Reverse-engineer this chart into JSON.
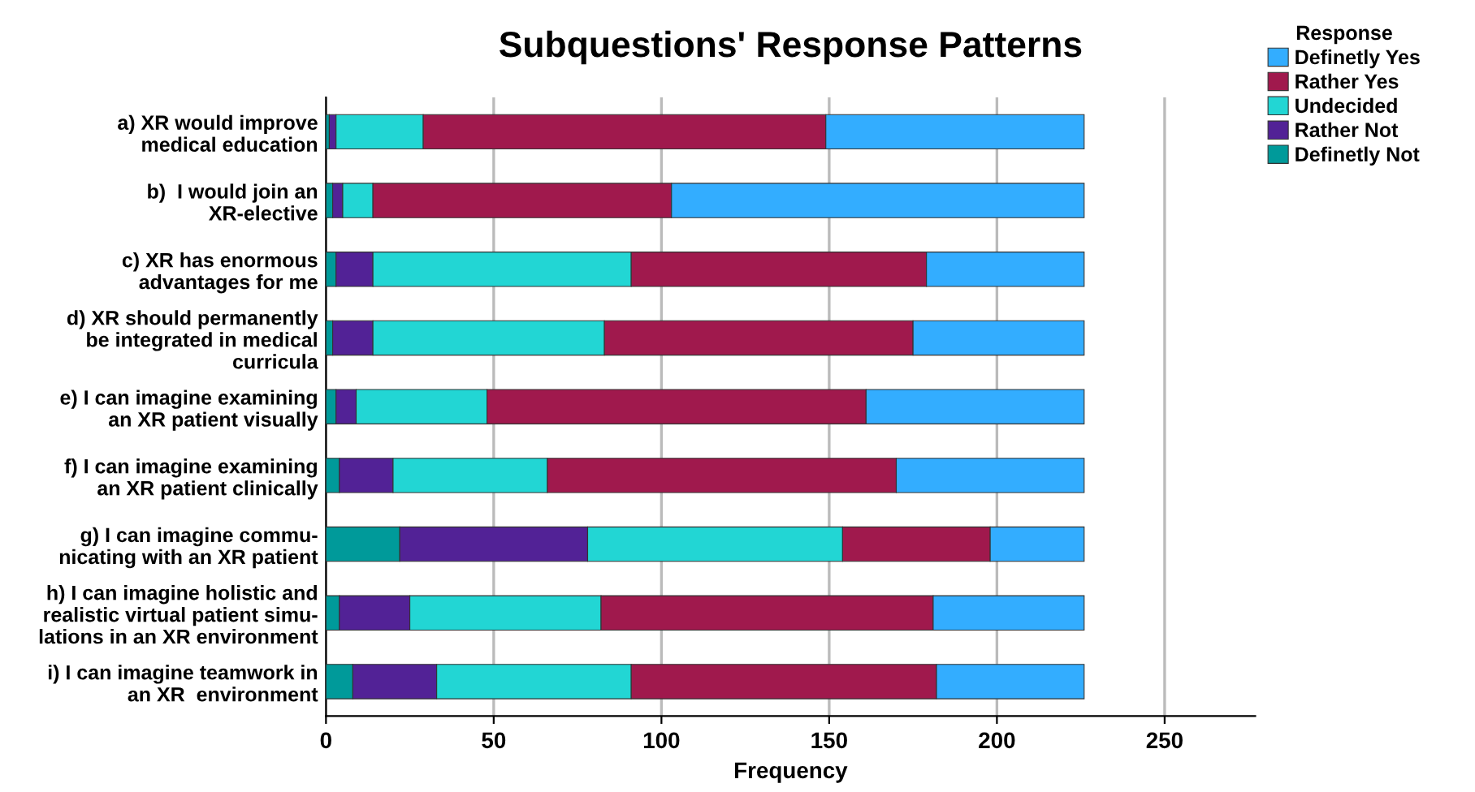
{
  "chart_data": {
    "type": "bar",
    "orientation": "horizontal",
    "stacked": true,
    "title": "Subquestions' Response Patterns",
    "xlabel": "Frequency",
    "legend_title": "Response",
    "categories": [
      "a) XR would improve\nmedical education",
      "b)  I would join an\nXR-elective",
      "c) XR has enormous\nadvantages for me",
      "d) XR should permanently\nbe integrated in medical\ncurricula",
      "e) I can imagine examining\nan XR patient visually",
      "f) I can imagine examining\nan XR patient clinically",
      "g) I can imagine commu-\nnicating with an XR patient",
      "h) I can imagine holistic and\nrealistic virtual patient simu-\nlations in an XR environment",
      "i) I can imagine teamwork in\nan XR  environment"
    ],
    "series": [
      {
        "name": "Definetly Not",
        "color": "#009a9a",
        "values": [
          1,
          2,
          3,
          2,
          3,
          4,
          22,
          4,
          8
        ]
      },
      {
        "name": "Rather Not",
        "color": "#522296",
        "values": [
          2,
          3,
          11,
          12,
          6,
          16,
          56,
          21,
          25
        ]
      },
      {
        "name": "Undecided",
        "color": "#22d6d4",
        "values": [
          26,
          9,
          77,
          69,
          39,
          46,
          76,
          57,
          58
        ]
      },
      {
        "name": "Rather Yes",
        "color": "#a0194d",
        "values": [
          120,
          89,
          88,
          92,
          113,
          104,
          44,
          99,
          91
        ]
      },
      {
        "name": "Definetly Yes",
        "color": "#33adff",
        "values": [
          77,
          123,
          47,
          51,
          65,
          56,
          28,
          45,
          44
        ]
      }
    ],
    "xlim": [
      0,
      277
    ],
    "xticks": [
      0,
      50,
      100,
      150,
      200,
      250
    ],
    "grid": "x",
    "legend": "top right"
  }
}
